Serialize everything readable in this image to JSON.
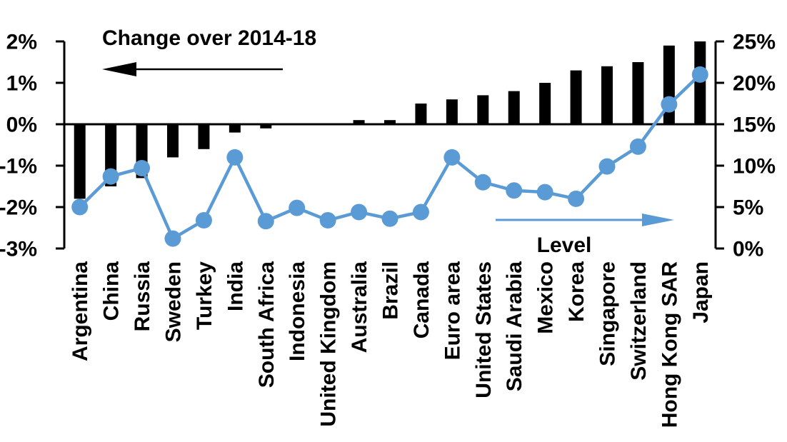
{
  "chart_data": {
    "type": "combo_bar_line",
    "title": "",
    "categories": [
      "Argentina",
      "China",
      "Russia",
      "Sweden",
      "Turkey",
      "India",
      "South Africa",
      "Indonesia",
      "United Kingdom",
      "Australia",
      "Brazil",
      "Canada",
      "Euro area",
      "United States",
      "Saudi Arabia",
      "Mexico",
      "Korea",
      "Singapore",
      "Switzerland",
      "Hong Kong SAR",
      "Japan"
    ],
    "series": [
      {
        "name": "Change over 2014-18",
        "type": "bar",
        "axis": "left",
        "color": "#000000",
        "values": [
          -1.8,
          -1.5,
          -1.3,
          -0.8,
          -0.6,
          -0.2,
          -0.1,
          0,
          0,
          0.1,
          0.1,
          0.5,
          0.6,
          0.7,
          0.8,
          1.0,
          1.3,
          1.4,
          1.5,
          1.9,
          2.0
        ]
      },
      {
        "name": "Level",
        "type": "line",
        "axis": "right",
        "color": "#5b9bd5",
        "values": [
          5.0,
          8.7,
          9.7,
          1.2,
          3.4,
          11.0,
          3.3,
          4.9,
          3.4,
          4.4,
          3.6,
          4.4,
          11.0,
          8.0,
          7.0,
          6.8,
          6.0,
          9.9,
          12.3,
          17.4,
          21.0
        ]
      }
    ],
    "left_axis": {
      "min": -3,
      "max": 2,
      "tick_values": [
        2,
        1,
        0,
        -1,
        -2,
        -3
      ],
      "tick_labels": [
        "2%",
        "1%",
        "0%",
        "-1%",
        "-2%",
        "-3%"
      ]
    },
    "right_axis": {
      "min": 0,
      "max": 25,
      "tick_values": [
        25,
        20,
        15,
        10,
        5,
        0
      ],
      "tick_labels": [
        "25%",
        "20%",
        "15%",
        "10%",
        "5%",
        "0%"
      ]
    },
    "annotations": {
      "bar_series_label": "Change over 2014-18",
      "line_series_label": "Level",
      "bar_arrow_direction": "left",
      "line_arrow_direction": "right"
    },
    "grid": "off",
    "legend": "annotated-arrows",
    "background": "#ffffff"
  }
}
